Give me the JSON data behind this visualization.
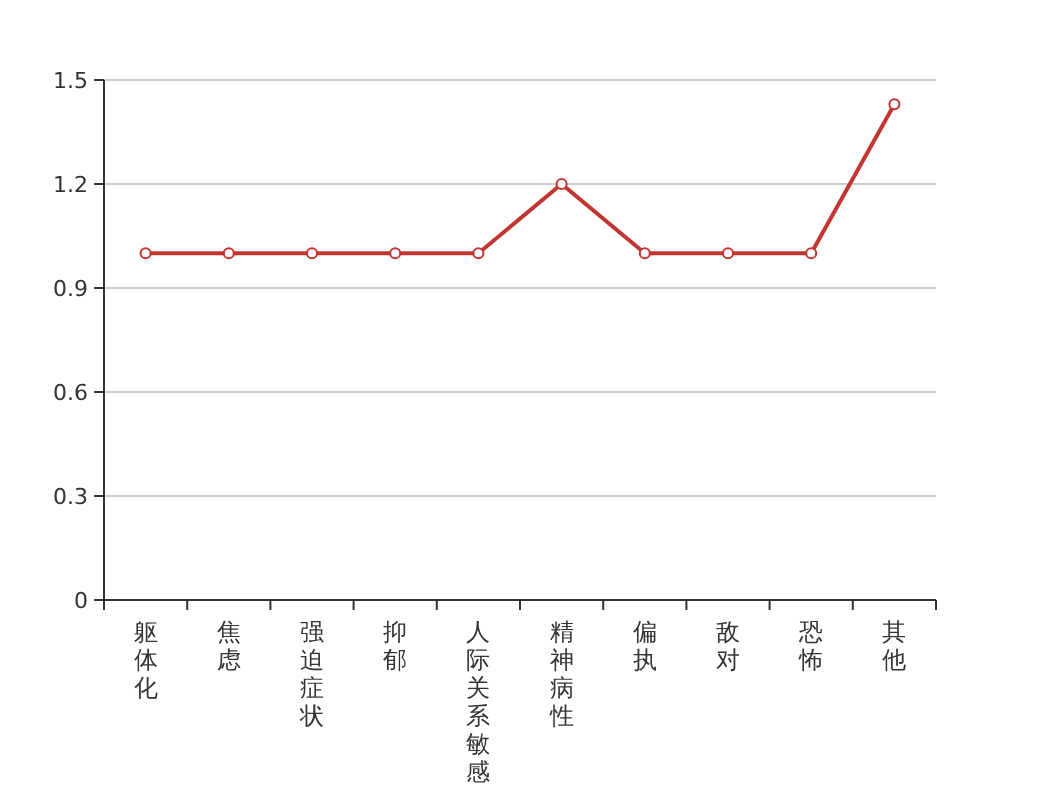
{
  "chart_data": {
    "type": "line",
    "categories": [
      "躯体化",
      "焦虑",
      "强迫症状",
      "抑郁",
      "人际关系敏感",
      "精神病性",
      "偏执",
      "敌对",
      "恐怖",
      "其他"
    ],
    "series": [
      {
        "color": "#c23531",
        "values": [
          1,
          1,
          1,
          1,
          1,
          1.2,
          1,
          1,
          1,
          1.43
        ]
      }
    ],
    "ylim": [
      0,
      1.5
    ],
    "yticks": [
      0,
      0.3,
      0.6,
      0.9,
      1.2,
      1.5
    ],
    "grid": "y",
    "marker": "circle",
    "line_style": "solid"
  }
}
